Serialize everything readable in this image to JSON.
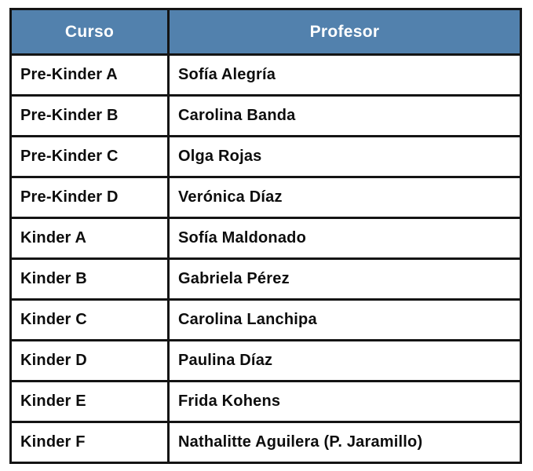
{
  "table": {
    "headers": {
      "curso": "Curso",
      "profesor": "Profesor"
    },
    "rows": [
      {
        "curso": "Pre-Kinder A",
        "profesor": "Sofía Alegría"
      },
      {
        "curso": "Pre-Kinder B",
        "profesor": "Carolina Banda"
      },
      {
        "curso": "Pre-Kinder C",
        "profesor": "Olga Rojas"
      },
      {
        "curso": "Pre-Kinder D",
        "profesor": "Verónica Díaz"
      },
      {
        "curso": "Kinder A",
        "profesor": "Sofía Maldonado"
      },
      {
        "curso": "Kinder B",
        "profesor": "Gabriela Pérez"
      },
      {
        "curso": "Kinder C",
        "profesor": "Carolina Lanchipa"
      },
      {
        "curso": "Kinder D",
        "profesor": "Paulina Díaz"
      },
      {
        "curso": "Kinder E",
        "profesor": "Frida Kohens"
      },
      {
        "curso": "Kinder F",
        "profesor": "Nathalitte Aguilera (P. Jaramillo)"
      }
    ],
    "colors": {
      "header_bg": "#5281AD",
      "header_text": "#FFFFFF",
      "body_text": "#0D0D0D",
      "border": "#141414"
    }
  }
}
